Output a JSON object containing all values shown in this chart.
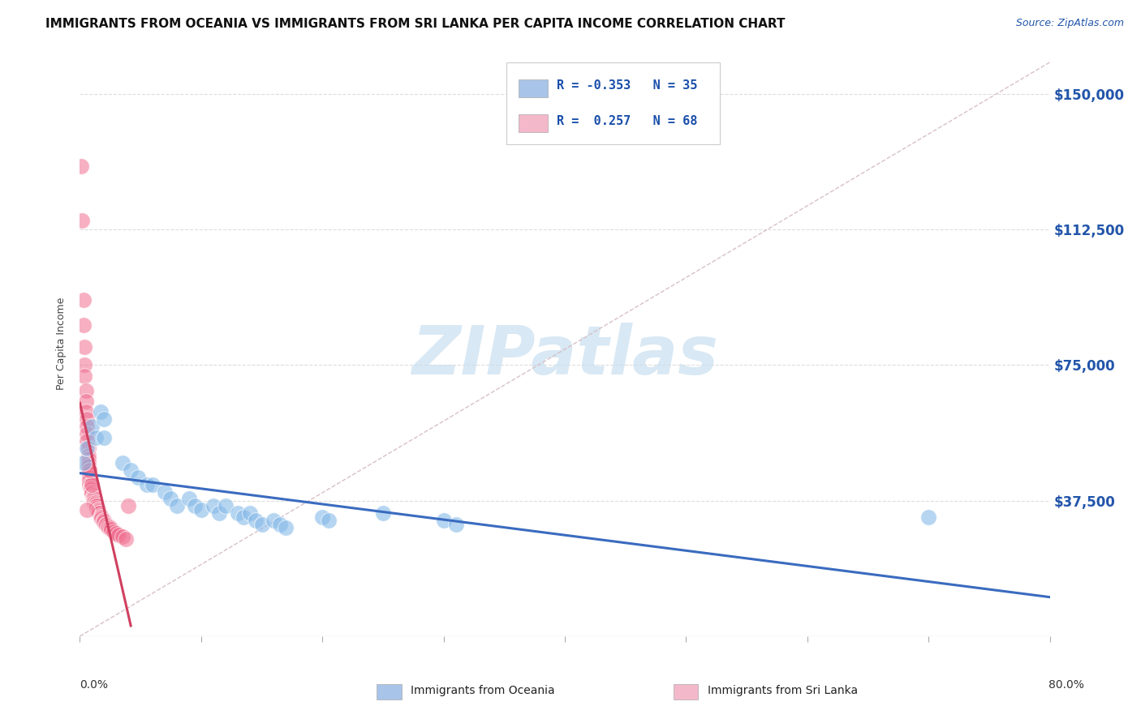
{
  "title": "IMMIGRANTS FROM OCEANIA VS IMMIGRANTS FROM SRI LANKA PER CAPITA INCOME CORRELATION CHART",
  "source": "Source: ZipAtlas.com",
  "ylabel": "Per Capita Income",
  "yticks": [
    0,
    37500,
    75000,
    112500,
    150000
  ],
  "ytick_labels": [
    "",
    "$37,500",
    "$75,000",
    "$112,500",
    "$150,000"
  ],
  "xlim": [
    0.0,
    0.8
  ],
  "ylim": [
    0,
    162000
  ],
  "legend_oceania_color": "#a8c4e8",
  "legend_srilanka_color": "#f4b8cb",
  "oceania_color": "#85b9e8",
  "srilanka_color": "#f07090",
  "trend_oceania_color": "#3a6bbf",
  "trend_srilanka_color": "#d04060",
  "ref_line_color": "#d8c0c8",
  "background_color": "#ffffff",
  "watermark_text": "ZIPatlas",
  "watermark_color": "#c8dff0",
  "oceania_points": [
    [
      0.003,
      48000
    ],
    [
      0.006,
      52000
    ],
    [
      0.01,
      58000
    ],
    [
      0.013,
      55000
    ],
    [
      0.017,
      62000
    ],
    [
      0.02,
      60000
    ],
    [
      0.02,
      55000
    ],
    [
      0.035,
      48000
    ],
    [
      0.042,
      46000
    ],
    [
      0.048,
      44000
    ],
    [
      0.055,
      42000
    ],
    [
      0.06,
      42000
    ],
    [
      0.07,
      40000
    ],
    [
      0.075,
      38000
    ],
    [
      0.08,
      36000
    ],
    [
      0.09,
      38000
    ],
    [
      0.095,
      36000
    ],
    [
      0.1,
      35000
    ],
    [
      0.11,
      36000
    ],
    [
      0.115,
      34000
    ],
    [
      0.12,
      36000
    ],
    [
      0.13,
      34000
    ],
    [
      0.135,
      33000
    ],
    [
      0.14,
      34000
    ],
    [
      0.145,
      32000
    ],
    [
      0.15,
      31000
    ],
    [
      0.16,
      32000
    ],
    [
      0.165,
      31000
    ],
    [
      0.17,
      30000
    ],
    [
      0.2,
      33000
    ],
    [
      0.205,
      32000
    ],
    [
      0.25,
      34000
    ],
    [
      0.3,
      32000
    ],
    [
      0.31,
      31000
    ],
    [
      0.7,
      33000
    ]
  ],
  "srilanka_points": [
    [
      0.001,
      130000
    ],
    [
      0.002,
      115000
    ],
    [
      0.003,
      93000
    ],
    [
      0.003,
      86000
    ],
    [
      0.004,
      80000
    ],
    [
      0.004,
      75000
    ],
    [
      0.004,
      72000
    ],
    [
      0.005,
      68000
    ],
    [
      0.005,
      65000
    ],
    [
      0.005,
      62000
    ],
    [
      0.006,
      60000
    ],
    [
      0.006,
      58000
    ],
    [
      0.006,
      56000
    ],
    [
      0.006,
      54000
    ],
    [
      0.007,
      52000
    ],
    [
      0.007,
      50000
    ],
    [
      0.007,
      49000
    ],
    [
      0.007,
      48000
    ],
    [
      0.007,
      47000
    ],
    [
      0.008,
      46000
    ],
    [
      0.008,
      45000
    ],
    [
      0.008,
      44000
    ],
    [
      0.008,
      43000
    ],
    [
      0.008,
      42000
    ],
    [
      0.009,
      42000
    ],
    [
      0.009,
      41000
    ],
    [
      0.009,
      41000
    ],
    [
      0.009,
      40500
    ],
    [
      0.01,
      40000
    ],
    [
      0.01,
      40000
    ],
    [
      0.01,
      39500
    ],
    [
      0.011,
      39000
    ],
    [
      0.011,
      38500
    ],
    [
      0.011,
      38000
    ],
    [
      0.012,
      38000
    ],
    [
      0.012,
      37500
    ],
    [
      0.012,
      37000
    ],
    [
      0.013,
      37000
    ],
    [
      0.013,
      36500
    ],
    [
      0.014,
      36000
    ],
    [
      0.014,
      36000
    ],
    [
      0.014,
      35500
    ],
    [
      0.015,
      35000
    ],
    [
      0.015,
      35000
    ],
    [
      0.015,
      34500
    ],
    [
      0.016,
      34000
    ],
    [
      0.016,
      34000
    ],
    [
      0.017,
      33500
    ],
    [
      0.017,
      33000
    ],
    [
      0.018,
      33000
    ],
    [
      0.018,
      32500
    ],
    [
      0.019,
      32000
    ],
    [
      0.02,
      32000
    ],
    [
      0.02,
      31500
    ],
    [
      0.021,
      31000
    ],
    [
      0.022,
      31000
    ],
    [
      0.023,
      30500
    ],
    [
      0.024,
      30000
    ],
    [
      0.025,
      30000
    ],
    [
      0.026,
      29500
    ],
    [
      0.028,
      29000
    ],
    [
      0.03,
      28500
    ],
    [
      0.032,
      28000
    ],
    [
      0.035,
      27500
    ],
    [
      0.038,
      27000
    ],
    [
      0.04,
      36000
    ],
    [
      0.01,
      42000
    ],
    [
      0.008,
      46000
    ],
    [
      0.006,
      35000
    ]
  ],
  "title_fontsize": 11,
  "axis_label_fontsize": 9,
  "tick_fontsize": 10,
  "source_fontsize": 9
}
